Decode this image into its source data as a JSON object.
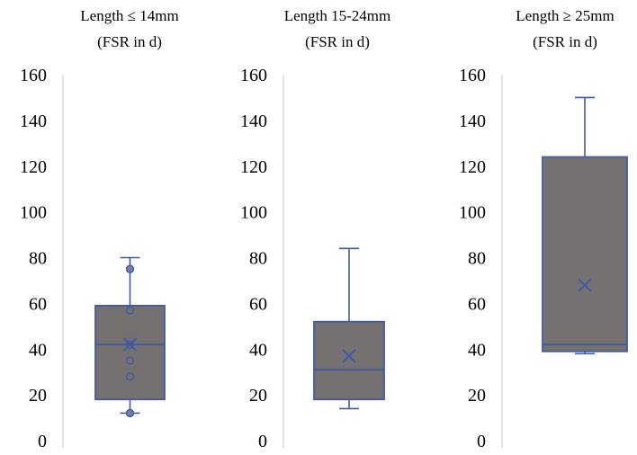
{
  "figure": {
    "panels": [
      {
        "title_line1": "Length ≤ 14mm",
        "title_line2": "(FSR in d)"
      },
      {
        "title_line1": "Length 15-24mm",
        "title_line2": "(FSR in d)"
      },
      {
        "title_line1": "Length ≥ 25mm",
        "title_line2": "(FSR in d)"
      }
    ]
  },
  "chart_data": [
    {
      "type": "boxplot",
      "title": "Length ≤ 14mm (FSR in d)",
      "ylim": [
        0,
        160
      ],
      "yticks": [
        0,
        20,
        40,
        60,
        80,
        100,
        120,
        140,
        160
      ],
      "min": 12,
      "q1": 18,
      "median": 42,
      "q3": 59,
      "max": 80,
      "mean": 42,
      "points": [
        75,
        57,
        42,
        35,
        28,
        12
      ],
      "grid": false
    },
    {
      "type": "boxplot",
      "title": "Length 15-24mm (FSR in d)",
      "ylim": [
        0,
        160
      ],
      "yticks": [
        0,
        20,
        40,
        60,
        80,
        100,
        120,
        140,
        160
      ],
      "min": 14,
      "q1": 18,
      "median": 31,
      "q3": 52,
      "max": 84,
      "mean": 37,
      "points": [],
      "grid": false
    },
    {
      "type": "boxplot",
      "title": "Length ≥ 25mm (FSR in d)",
      "ylim": [
        0,
        160
      ],
      "yticks": [
        0,
        20,
        40,
        60,
        80,
        100,
        120,
        140,
        160
      ],
      "min": 38,
      "q1": 39,
      "median": 42,
      "q3": 124,
      "max": 150,
      "mean": 68,
      "points": [],
      "grid": false
    }
  ],
  "colors": {
    "box_fill": "#767171",
    "box_stroke": "#3f5aa6",
    "point_fill": "#6e7fa8",
    "axis_line": "#d9d9d9"
  }
}
